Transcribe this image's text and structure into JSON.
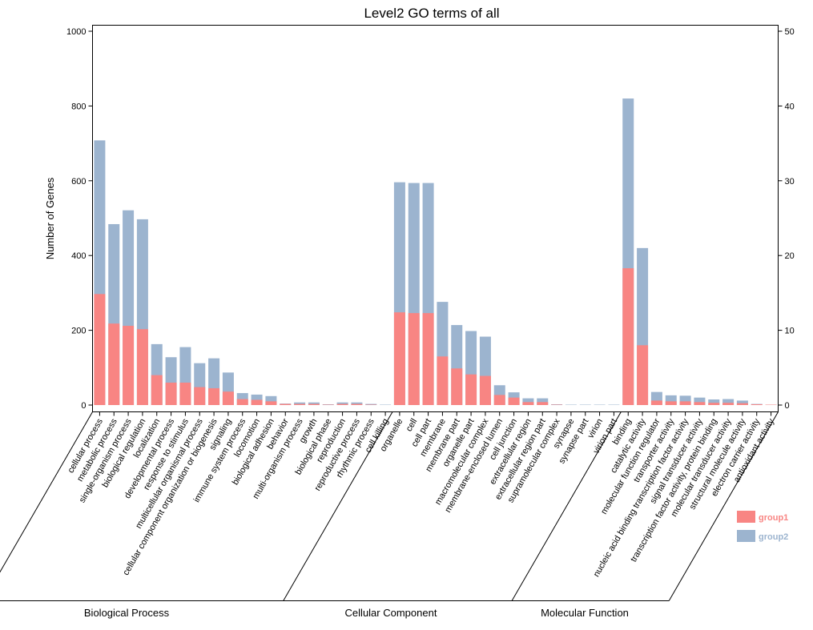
{
  "chart_data": {
    "type": "bar",
    "title": "Level2 GO terms of all",
    "ylabel": "Number of Genes",
    "ylim": [
      0,
      1000
    ],
    "yticks": [
      0,
      200,
      400,
      600,
      800,
      1000
    ],
    "y2lim": [
      0,
      50
    ],
    "y2ticks": [
      0,
      10,
      20,
      30,
      40,
      50
    ],
    "grid": false,
    "legend_position": "bottom-right",
    "colors": {
      "group1": "#f88583",
      "group2": "#9cb4cf"
    },
    "categories": [
      "cellular process",
      "metabolic process",
      "single-organism process",
      "biological regulation",
      "localization",
      "developmental process",
      "response to stimulus",
      "multicellular organismal process",
      "cellular component organization or biogenesis",
      "signaling",
      "immune system process",
      "locomotion",
      "biological adhesion",
      "behavior",
      "multi-organism process",
      "growth",
      "biological phase",
      "reproduction",
      "reproductive process",
      "rhythmic process",
      "cell killing",
      "organelle",
      "cell",
      "cell part",
      "membrane",
      "membrane part",
      "organelle part",
      "macromolecular complex",
      "membrane-enclosed lumen",
      "cell junction",
      "extracellular region",
      "extracellular region part",
      "supramolecular complex",
      "synapse",
      "synapse part",
      "virion",
      "virion part",
      "binding",
      "catalytic activity",
      "molecular function regulator",
      "transporter activity",
      "nucleic acid binding transcription factor activity",
      "signal transducer activity",
      "transcription factor activity, protein binding",
      "molecular transducer activity",
      "structural molecule activity",
      "electron carrier activity",
      "antioxidant activity"
    ],
    "series": [
      {
        "name": "group1",
        "values": [
          297,
          218,
          212,
          203,
          80,
          60,
          60,
          48,
          45,
          36,
          16,
          14,
          10,
          3,
          3,
          3,
          1,
          3,
          3,
          1,
          0,
          248,
          246,
          246,
          130,
          98,
          82,
          78,
          27,
          20,
          8,
          8,
          1,
          0,
          0,
          0,
          0,
          366,
          160,
          12,
          10,
          10,
          8,
          6,
          6,
          5,
          2,
          1
        ]
      },
      {
        "name": "group2",
        "values": [
          708,
          484,
          521,
          497,
          163,
          128,
          155,
          112,
          125,
          87,
          32,
          28,
          24,
          4,
          7,
          7,
          2,
          7,
          7,
          3,
          1,
          596,
          594,
          594,
          276,
          214,
          198,
          183,
          53,
          34,
          18,
          18,
          2,
          1,
          1,
          1,
          1,
          820,
          420,
          35,
          26,
          25,
          20,
          15,
          16,
          12,
          3,
          1
        ]
      }
    ],
    "groups": [
      {
        "label": "Biological Process",
        "count": 21
      },
      {
        "label": "Cellular Component",
        "count": 16
      },
      {
        "label": "Molecular Function",
        "count": 11
      }
    ]
  }
}
